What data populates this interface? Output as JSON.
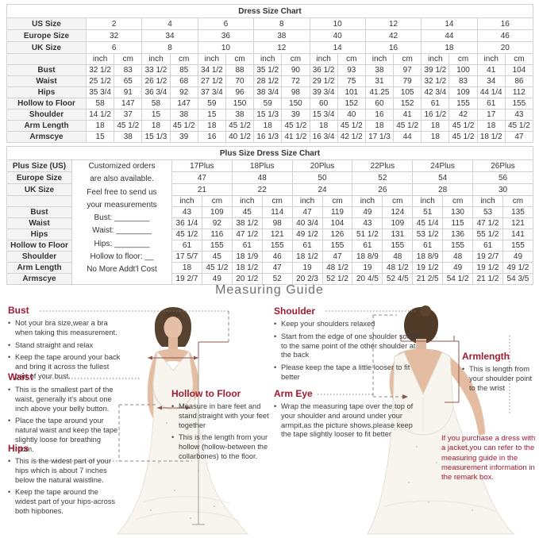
{
  "colors": {
    "accent": "#9e1b32",
    "table_border": "#d2d2d2",
    "text": "#333333",
    "guide_title_gray": "#707070"
  },
  "size_chart": {
    "title": "Dress Size Chart",
    "unit_labels": [
      "inch",
      "cm"
    ],
    "size_rows": [
      {
        "label": "US Size",
        "values": [
          "2",
          "4",
          "6",
          "8",
          "10",
          "12",
          "14",
          "16"
        ]
      },
      {
        "label": "Europe Size",
        "values": [
          "32",
          "34",
          "36",
          "38",
          "40",
          "42",
          "44",
          "46"
        ]
      },
      {
        "label": "UK Size",
        "values": [
          "6",
          "8",
          "10",
          "12",
          "14",
          "16",
          "18",
          "20"
        ]
      }
    ],
    "measure_rows": [
      {
        "label": "Bust",
        "values": [
          [
            "32 1/2",
            "83"
          ],
          [
            "33 1/2",
            "85"
          ],
          [
            "34 1/2",
            "88"
          ],
          [
            "35 1/2",
            "90"
          ],
          [
            "36 1/2",
            "93"
          ],
          [
            "38",
            "97"
          ],
          [
            "39 1/2",
            "100"
          ],
          [
            "41",
            "104"
          ]
        ]
      },
      {
        "label": "Waist",
        "values": [
          [
            "25 1/2",
            "65"
          ],
          [
            "26 1/2",
            "68"
          ],
          [
            "27 1/2",
            "70"
          ],
          [
            "28 1/2",
            "72"
          ],
          [
            "29 1/2",
            "75"
          ],
          [
            "31",
            "79"
          ],
          [
            "32 1/2",
            "83"
          ],
          [
            "34",
            "86"
          ]
        ]
      },
      {
        "label": "Hips",
        "values": [
          [
            "35 3/4",
            "91"
          ],
          [
            "36 3/4",
            "92"
          ],
          [
            "37 3/4",
            "96"
          ],
          [
            "38 3/4",
            "98"
          ],
          [
            "39 3/4",
            "101"
          ],
          [
            "41.25",
            "105"
          ],
          [
            "42 3/4",
            "109"
          ],
          [
            "44 1/4",
            "112"
          ]
        ]
      },
      {
        "label": "Hollow to Floor",
        "values": [
          [
            "58",
            "147"
          ],
          [
            "58",
            "147"
          ],
          [
            "59",
            "150"
          ],
          [
            "59",
            "150"
          ],
          [
            "60",
            "152"
          ],
          [
            "60",
            "152"
          ],
          [
            "61",
            "155"
          ],
          [
            "61",
            "155"
          ]
        ]
      },
      {
        "label": "Shoulder",
        "values": [
          [
            "14 1/2",
            "37"
          ],
          [
            "15",
            "38"
          ],
          [
            "15",
            "38"
          ],
          [
            "15 1/3",
            "39"
          ],
          [
            "15 3/4",
            "40"
          ],
          [
            "16",
            "41"
          ],
          [
            "16 1/2",
            "42"
          ],
          [
            "17",
            "43"
          ]
        ]
      },
      {
        "label": "Arm Length",
        "values": [
          [
            "18",
            "45 1/2"
          ],
          [
            "18",
            "45 1/2"
          ],
          [
            "18",
            "45 1/2"
          ],
          [
            "18",
            "45 1/2"
          ],
          [
            "18",
            "45 1/2"
          ],
          [
            "18",
            "45 1/2"
          ],
          [
            "18",
            "45 1/2"
          ],
          [
            "18",
            "45 1/2"
          ]
        ]
      },
      {
        "label": "Armscye",
        "values": [
          [
            "15",
            "38"
          ],
          [
            "15 1/3",
            "39"
          ],
          [
            "16",
            "40 1/2"
          ],
          [
            "16 1/3",
            "41 1/2"
          ],
          [
            "16 3/4",
            "42 1/2"
          ],
          [
            "17 1/3",
            "44"
          ],
          [
            "18",
            "45 1/2"
          ],
          [
            "18 1/2",
            "47"
          ]
        ]
      }
    ]
  },
  "plus_chart": {
    "title": "Plus Size Dress Size Chart",
    "unit_labels": [
      "inch",
      "cm"
    ],
    "note_lines": [
      "Customized orders",
      "are also available.",
      "Feel free to send us",
      "your measurements",
      "Bust: ________",
      "Waist: ________",
      "Hips: ________",
      "Hollow to floor: __",
      "No More Addt'l Cost"
    ],
    "size_rows": [
      {
        "label": "Plus Size (US)",
        "values": [
          "17Plus",
          "18Plus",
          "20Plus",
          "22Plus",
          "24Plus",
          "26Plus"
        ]
      },
      {
        "label": "Europe Size",
        "values": [
          "47",
          "48",
          "50",
          "52",
          "54",
          "56"
        ]
      },
      {
        "label": "UK Size",
        "values": [
          "21",
          "22",
          "24",
          "26",
          "28",
          "30"
        ]
      }
    ],
    "measure_rows": [
      {
        "label": "Bust",
        "values": [
          [
            "43",
            "109"
          ],
          [
            "45",
            "114"
          ],
          [
            "47",
            "119"
          ],
          [
            "49",
            "124"
          ],
          [
            "51",
            "130"
          ],
          [
            "53",
            "135"
          ]
        ]
      },
      {
        "label": "Waist",
        "values": [
          [
            "36 1/4",
            "92"
          ],
          [
            "38 1/2",
            "98"
          ],
          [
            "40 3/4",
            "104"
          ],
          [
            "43",
            "109"
          ],
          [
            "45 1/4",
            "115"
          ],
          [
            "47 1/2",
            "121"
          ]
        ]
      },
      {
        "label": "Hips",
        "values": [
          [
            "45 1/2",
            "116"
          ],
          [
            "47 1/2",
            "121"
          ],
          [
            "49 1/2",
            "126"
          ],
          [
            "51 1/2",
            "131"
          ],
          [
            "53 1/2",
            "136"
          ],
          [
            "55 1/2",
            "141"
          ]
        ]
      },
      {
        "label": "Hollow to Floor",
        "values": [
          [
            "61",
            "155"
          ],
          [
            "61",
            "155"
          ],
          [
            "61",
            "155"
          ],
          [
            "61",
            "155"
          ],
          [
            "61",
            "155"
          ],
          [
            "61",
            "155"
          ]
        ]
      },
      {
        "label": "Shoulder",
        "values": [
          [
            "17 5/7",
            "45"
          ],
          [
            "18 1/9",
            "46"
          ],
          [
            "18 1/2",
            "47"
          ],
          [
            "18 8/9",
            "48"
          ],
          [
            "18 8/9",
            "48"
          ],
          [
            "19 2/7",
            "49"
          ]
        ]
      },
      {
        "label": "Arm Length",
        "values": [
          [
            "18",
            "45 1/2"
          ],
          [
            "18 1/2",
            "47"
          ],
          [
            "19",
            "48 1/2"
          ],
          [
            "19",
            "48 1/2"
          ],
          [
            "19 1/2",
            "49"
          ],
          [
            "19 1/2",
            "49 1/2"
          ]
        ]
      },
      {
        "label": "Armscye",
        "values": [
          [
            "19 2/7",
            "49"
          ],
          [
            "20 1/2",
            "52"
          ],
          [
            "20 2/3",
            "52 1/2"
          ],
          [
            "20 4/5",
            "52 4/5"
          ],
          [
            "21 2/5",
            "54 1/2"
          ],
          [
            "21 1/2",
            "54 3/5"
          ]
        ]
      }
    ]
  },
  "guide": {
    "title": "Measuring Guide",
    "sections": {
      "bust": {
        "heading": "Bust",
        "bullets": [
          "Not your bra size,wear a bra when taking this measurement.",
          "Stand straight and relax",
          "Keep the tape around your back and bring it across the fullest part of your bust."
        ]
      },
      "waist": {
        "heading": "Waist",
        "bullets": [
          "This is the smallest part of the waist, generally it's about one inch above your belly button.",
          "Place the tape around your natural waist and keep the tape slightly loose for breathing room."
        ]
      },
      "hips": {
        "heading": "Hips",
        "bullets": [
          "This is the widest part of your hips which is about 7 inches below the natural waistline.",
          "Keep the tape around the widest part of your hips-across both hipbones."
        ]
      },
      "hollow_to_floor": {
        "heading": "Hollow to Floor",
        "bullets": [
          "Measure in bare feet and stand straight with your feet together",
          "This is the length from your hollow (hollow-between the collarbones) to the floor."
        ]
      },
      "shoulder": {
        "heading": "Shoulder",
        "bullets": [
          "Keep your shoulders relaxed",
          "Start from the edge of one shoulder socket to the same point of the other shoulder at the back",
          "Please keep the tape a little looser to fit better"
        ]
      },
      "arm_eye": {
        "heading": "Arm Eye",
        "bullets": [
          "Wrap the measuring tape over the top of your shoulder and around under your armpit,as the picture shows.please keep the tape slightly looser to fit better"
        ]
      },
      "armlength": {
        "heading": "Armlength",
        "bullets": [
          "This is length from your shoulder point to the wrist"
        ]
      }
    },
    "jacket_note": "If you purchase a dress with a jacket,you can refer to the measuring guide in the measurement information in the remark box."
  }
}
